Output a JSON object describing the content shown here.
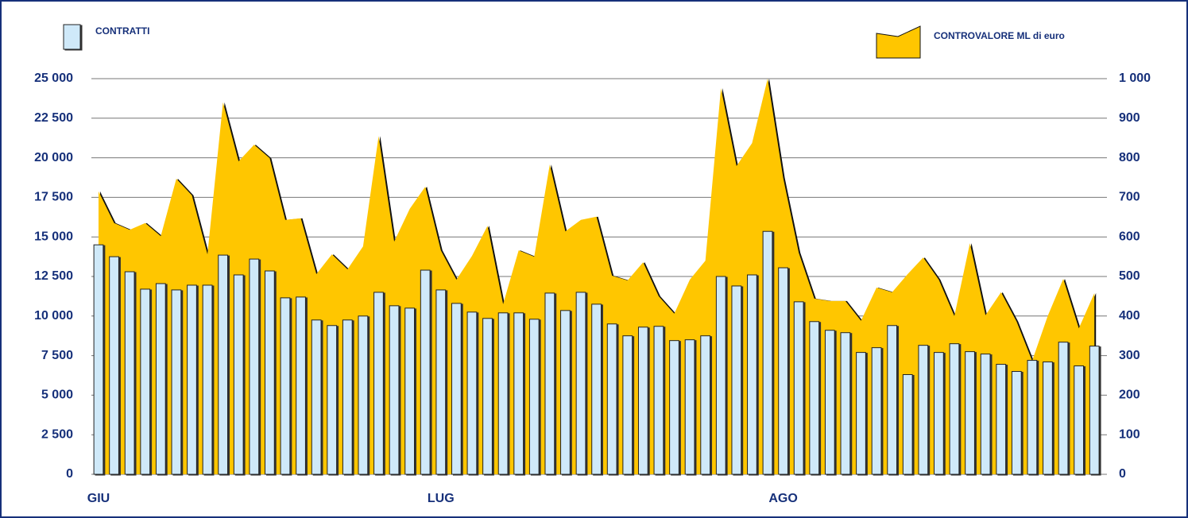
{
  "chart_data": {
    "type": "bar",
    "categories": [
      "GIU",
      null,
      null,
      null,
      null,
      null,
      null,
      null,
      null,
      null,
      null,
      null,
      null,
      null,
      null,
      null,
      null,
      null,
      null,
      null,
      null,
      null,
      "LUG",
      null,
      null,
      null,
      null,
      null,
      null,
      null,
      null,
      null,
      null,
      null,
      null,
      null,
      null,
      null,
      null,
      null,
      null,
      null,
      null,
      null,
      "AGO",
      null,
      null,
      null,
      null,
      null,
      null,
      null,
      null,
      null,
      null,
      null,
      null,
      null,
      null,
      null,
      null,
      null,
      null,
      null,
      null
    ],
    "series": [
      {
        "name": "CONTRATTI",
        "type": "bar",
        "color": "#cfe9f9",
        "values": [
          14500,
          13750,
          12800,
          11700,
          12050,
          11650,
          11950,
          11950,
          13850,
          12600,
          13600,
          12850,
          11150,
          11200,
          9750,
          9400,
          9750,
          10000,
          11500,
          10650,
          10500,
          12900,
          11650,
          10800,
          10250,
          9850,
          10200,
          10200,
          9800,
          11450,
          10350,
          11500,
          10750,
          9500,
          8750,
          9300,
          9350,
          8450,
          8500,
          8750,
          12500,
          11900,
          12600,
          15350,
          13050,
          10900,
          9650,
          9100,
          8950,
          7700,
          8000,
          9400,
          6300,
          8150,
          7700,
          8250,
          7750,
          7600,
          6950,
          6500,
          7200,
          7100,
          8350,
          6850,
          8100
        ]
      },
      {
        "name": "CONTROVALORE ML di euro",
        "type": "area",
        "axis": "y2",
        "color": "#ffc600",
        "values": [
          715,
          635,
          618,
          635,
          602,
          747,
          705,
          556,
          940,
          791,
          833,
          799,
          643,
          647,
          506,
          556,
          518,
          576,
          855,
          588,
          671,
          727,
          566,
          492,
          552,
          628,
          430,
          566,
          550,
          783,
          614,
          643,
          651,
          502,
          490,
          536,
          450,
          406,
          492,
          540,
          976,
          779,
          837,
          1000,
          749,
          560,
          444,
          438,
          438,
          388,
          472,
          460,
          506,
          548,
          492,
          400,
          584,
          402,
          460,
          386,
          287,
          400,
          494,
          369,
          458
        ]
      }
    ],
    "ylim": [
      0,
      25000
    ],
    "yticks": [
      0,
      {
        "value": 2500,
        "label": "2 500"
      },
      {
        "value": 5000,
        "label": "5 000"
      },
      {
        "value": 7500,
        "label": "7 500"
      },
      {
        "value": 10000,
        "label": "10 000"
      },
      {
        "value": 12500,
        "label": "12 500"
      },
      {
        "value": 15000,
        "label": "15 000"
      },
      {
        "value": 17500,
        "label": "17 500"
      },
      {
        "value": 20000,
        "label": "20 000"
      },
      {
        "value": 22500,
        "label": "22 500"
      },
      {
        "value": 25000,
        "label": "25 000"
      }
    ],
    "y2lim": [
      0,
      1000
    ],
    "y2ticks": [
      0,
      100,
      200,
      300,
      400,
      500,
      600,
      700,
      800,
      900,
      {
        "value": 1000,
        "label": "1 000"
      }
    ],
    "grid": true
  }
}
